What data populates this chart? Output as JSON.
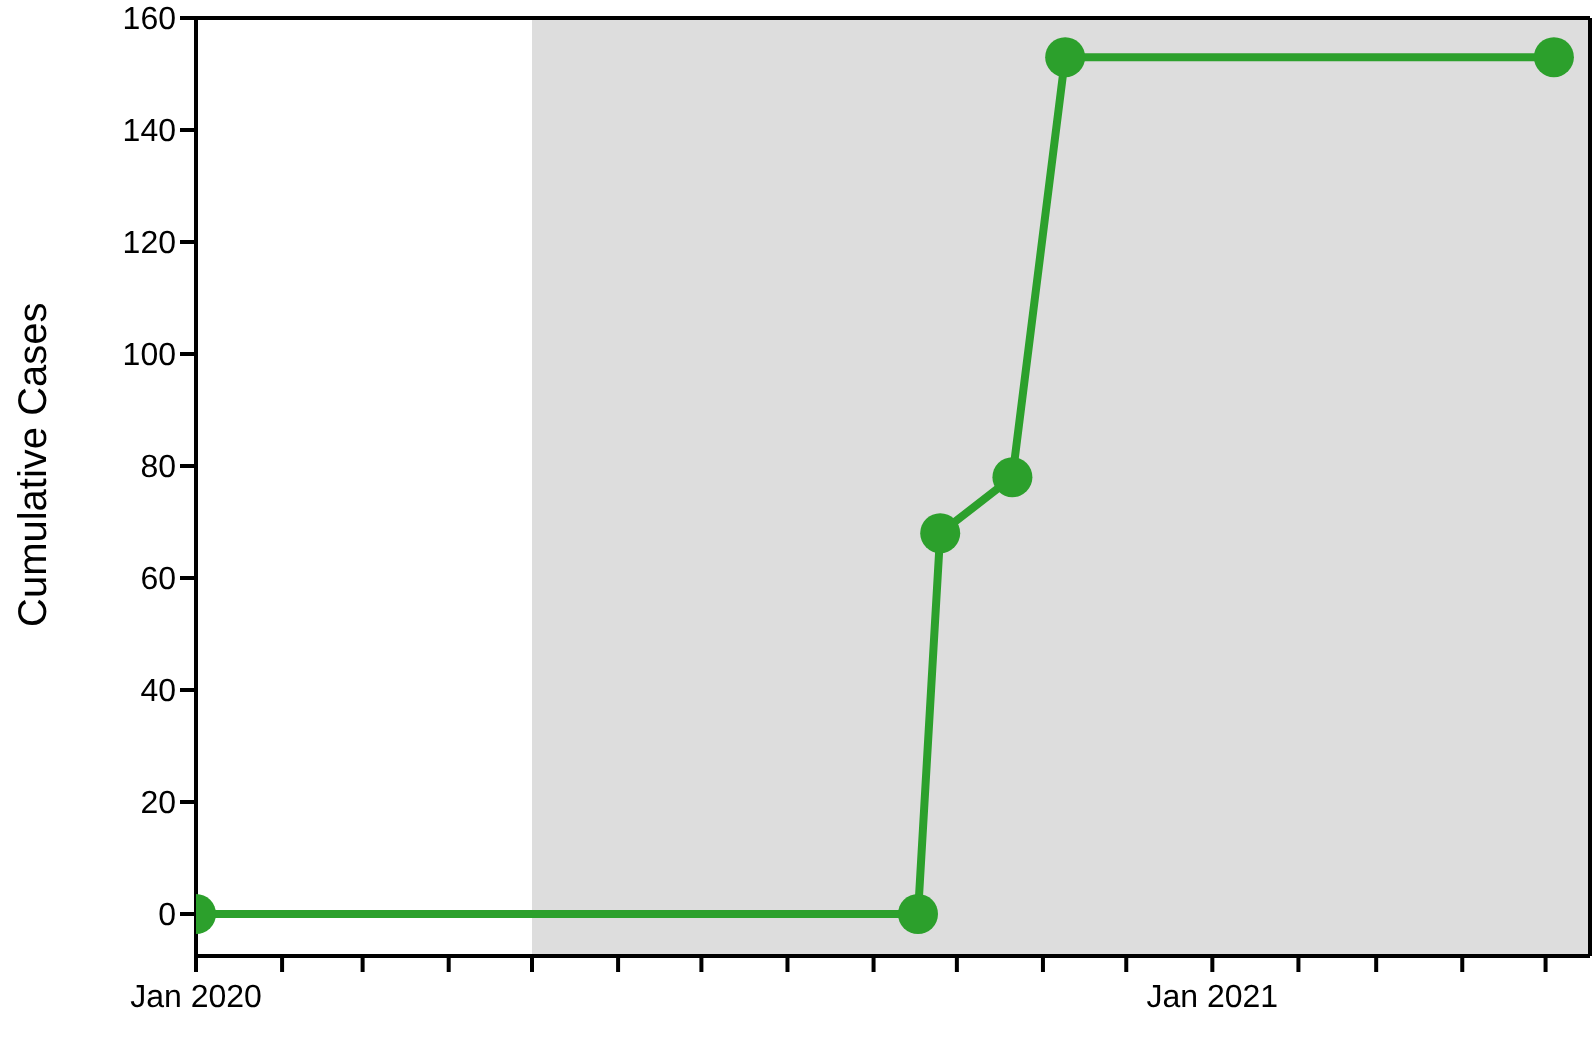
{
  "chart_data": {
    "type": "line",
    "ylabel": "Cumulative Cases",
    "x": [
      "2020-01-01",
      "2020-09-17",
      "2020-09-25",
      "2020-10-21",
      "2020-11-09",
      "2021-05-04"
    ],
    "series": [
      {
        "color": "#2ca02c",
        "values": [
          0,
          0,
          68,
          78,
          153,
          153
        ]
      }
    ],
    "xlim": [
      "2020-01-01",
      "2021-05-17"
    ],
    "xticks": [
      {
        "value": "2020-01-01",
        "label": "Jan 2020"
      },
      {
        "value": "2020-02-01",
        "label": null
      },
      {
        "value": "2020-03-01",
        "label": null
      },
      {
        "value": "2020-04-01",
        "label": null
      },
      {
        "value": "2020-05-01",
        "label": null
      },
      {
        "value": "2020-06-01",
        "label": null
      },
      {
        "value": "2020-07-01",
        "label": null
      },
      {
        "value": "2020-08-01",
        "label": null
      },
      {
        "value": "2020-09-01",
        "label": null
      },
      {
        "value": "2020-10-01",
        "label": null
      },
      {
        "value": "2020-11-01",
        "label": null
      },
      {
        "value": "2020-12-01",
        "label": null
      },
      {
        "value": "2021-01-01",
        "label": "Jan 2021"
      },
      {
        "value": "2021-02-01",
        "label": null
      },
      {
        "value": "2021-03-01",
        "label": null
      },
      {
        "value": "2021-04-01",
        "label": null
      },
      {
        "value": "2021-05-01",
        "label": null
      }
    ],
    "ylim": [
      -7.5,
      160
    ],
    "yticks": [
      0,
      20,
      40,
      60,
      80,
      100,
      120,
      140,
      160
    ],
    "bands": [
      {
        "axis": "x",
        "from": "2020-05-01",
        "to": "2021-05-17",
        "color": "#dddddd"
      }
    ],
    "marker": "circle",
    "line_style": "solid",
    "grid": false,
    "legend": false
  }
}
